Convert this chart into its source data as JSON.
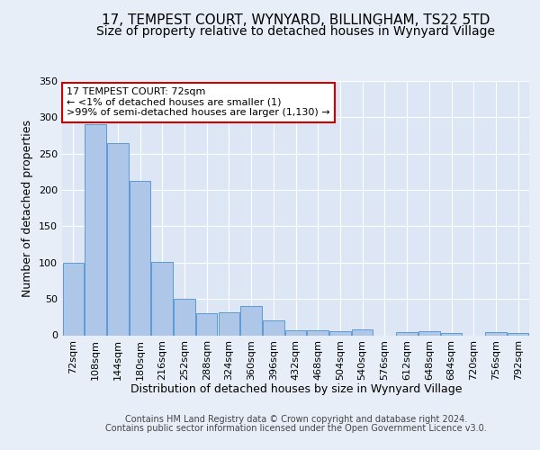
{
  "title": "17, TEMPEST COURT, WYNYARD, BILLINGHAM, TS22 5TD",
  "subtitle": "Size of property relative to detached houses in Wynyard Village",
  "xlabel": "Distribution of detached houses by size in Wynyard Village",
  "ylabel": "Number of detached properties",
  "footer_line1": "Contains HM Land Registry data © Crown copyright and database right 2024.",
  "footer_line2": "Contains public sector information licensed under the Open Government Licence v3.0.",
  "categories": [
    "72sqm",
    "108sqm",
    "144sqm",
    "180sqm",
    "216sqm",
    "252sqm",
    "288sqm",
    "324sqm",
    "360sqm",
    "396sqm",
    "432sqm",
    "468sqm",
    "504sqm",
    "540sqm",
    "576sqm",
    "612sqm",
    "648sqm",
    "684sqm",
    "720sqm",
    "756sqm",
    "792sqm"
  ],
  "values": [
    100,
    290,
    265,
    212,
    101,
    50,
    30,
    32,
    40,
    20,
    7,
    7,
    5,
    8,
    0,
    4,
    5,
    3,
    0,
    4,
    3
  ],
  "bar_color": "#aec6e8",
  "bar_edge_color": "#5b9bd5",
  "annotation_text": "17 TEMPEST COURT: 72sqm\n← <1% of detached houses are smaller (1)\n>99% of semi-detached houses are larger (1,130) →",
  "annotation_box_color": "#ffffff",
  "annotation_box_edge": "#cc0000",
  "ylim": [
    0,
    350
  ],
  "yticks": [
    0,
    50,
    100,
    150,
    200,
    250,
    300,
    350
  ],
  "background_color": "#e8eef7",
  "plot_bg_color": "#dce6f5",
  "grid_color": "#ffffff",
  "title_fontsize": 11,
  "subtitle_fontsize": 10,
  "ylabel_fontsize": 9,
  "tick_fontsize": 8,
  "xlabel_fontsize": 9,
  "footer_fontsize": 7,
  "annotation_fontsize": 8
}
